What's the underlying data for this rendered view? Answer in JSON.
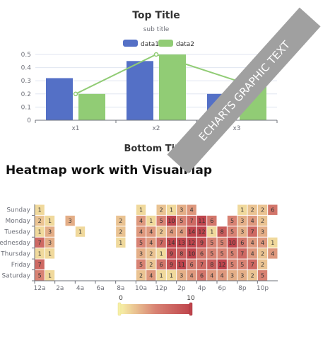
{
  "bar_chart": {
    "title": "Top Title",
    "subtitle": "sub title",
    "bottom_title": "Bottom Title",
    "graphic_text": "ECHARTS GRAPHIC TEXT",
    "colors": {
      "data1": "#5470c6",
      "data2": "#91cc75",
      "text": "#333333",
      "axis": "#6e7079",
      "grid": "#e0e6f1"
    }
  },
  "heatmap": {
    "heading": "Heatmap work with VisualMap",
    "visual_min_label": "0",
    "visual_max_label": "10",
    "colors": [
      "#f6efa6",
      "#d88273",
      "#bf444c"
    ]
  },
  "chart_data": [
    {
      "type": "bar",
      "title": "Top Title",
      "subtitle": "sub title",
      "categories": [
        "x1",
        "x2",
        "x3"
      ],
      "series": [
        {
          "name": "data1",
          "type": "bar",
          "values": [
            0.32,
            0.45,
            0.2
          ]
        },
        {
          "name": "data2",
          "type": "bar",
          "values": [
            0.2,
            0.5,
            0.3
          ]
        },
        {
          "type": "line",
          "values": [
            0.2,
            0.5,
            0.3
          ]
        }
      ],
      "ylim": [
        0,
        0.5
      ],
      "yticks": [
        "0",
        "0.1",
        "0.2",
        "0.3",
        "0.4",
        "0.5"
      ],
      "grid": true,
      "legend": "top-center"
    },
    {
      "type": "heatmap",
      "title": "Heatmap work with VisualMap",
      "x": [
        "12a",
        "1a",
        "2a",
        "3a",
        "4a",
        "5a",
        "6a",
        "7a",
        "8a",
        "9a",
        "10a",
        "11a",
        "12p",
        "1p",
        "2p",
        "3p",
        "4p",
        "5p",
        "6p",
        "7p",
        "8p",
        "9p",
        "10p",
        "11p"
      ],
      "x_tick_labels": [
        "12a",
        "2a",
        "4a",
        "6a",
        "8a",
        "10a",
        "12p",
        "2p",
        "4p",
        "6p",
        "8p",
        "10p"
      ],
      "y": [
        "Saturday",
        "Friday",
        "Thursday",
        "Wednesday",
        "Tuesday",
        "Monday",
        "Sunday"
      ],
      "y_tick_labels": [
        "Saturday",
        "Friday",
        "Thursday",
        "ednesday",
        "Tuesday",
        "Monday",
        "Sunday"
      ],
      "rows": [
        [
          5,
          1,
          null,
          null,
          null,
          null,
          null,
          null,
          null,
          null,
          2,
          4,
          1,
          1,
          3,
          4,
          6,
          4,
          4,
          3,
          3,
          2,
          5,
          null
        ],
        [
          7,
          null,
          null,
          null,
          null,
          null,
          null,
          null,
          null,
          null,
          5,
          2,
          6,
          9,
          11,
          6,
          7,
          8,
          12,
          5,
          5,
          7,
          2,
          null
        ],
        [
          1,
          1,
          null,
          null,
          null,
          null,
          null,
          null,
          null,
          null,
          3,
          2,
          1,
          9,
          8,
          10,
          6,
          5,
          5,
          5,
          7,
          4,
          2,
          4
        ],
        [
          7,
          3,
          null,
          null,
          null,
          null,
          null,
          null,
          1,
          null,
          5,
          4,
          7,
          14,
          13,
          12,
          9,
          5,
          5,
          10,
          6,
          4,
          4,
          1
        ],
        [
          1,
          3,
          null,
          null,
          1,
          null,
          null,
          null,
          2,
          null,
          4,
          4,
          2,
          4,
          4,
          14,
          12,
          1,
          8,
          5,
          3,
          7,
          3,
          null
        ],
        [
          2,
          1,
          null,
          3,
          null,
          null,
          null,
          null,
          2,
          null,
          4,
          1,
          5,
          10,
          5,
          7,
          11,
          6,
          null,
          5,
          3,
          4,
          2,
          null
        ],
        [
          1,
          null,
          null,
          null,
          null,
          null,
          null,
          null,
          null,
          null,
          1,
          null,
          2,
          1,
          3,
          4,
          null,
          null,
          null,
          null,
          1,
          2,
          2,
          6
        ]
      ],
      "visual_map": {
        "min": 0,
        "max": 10
      }
    }
  ]
}
